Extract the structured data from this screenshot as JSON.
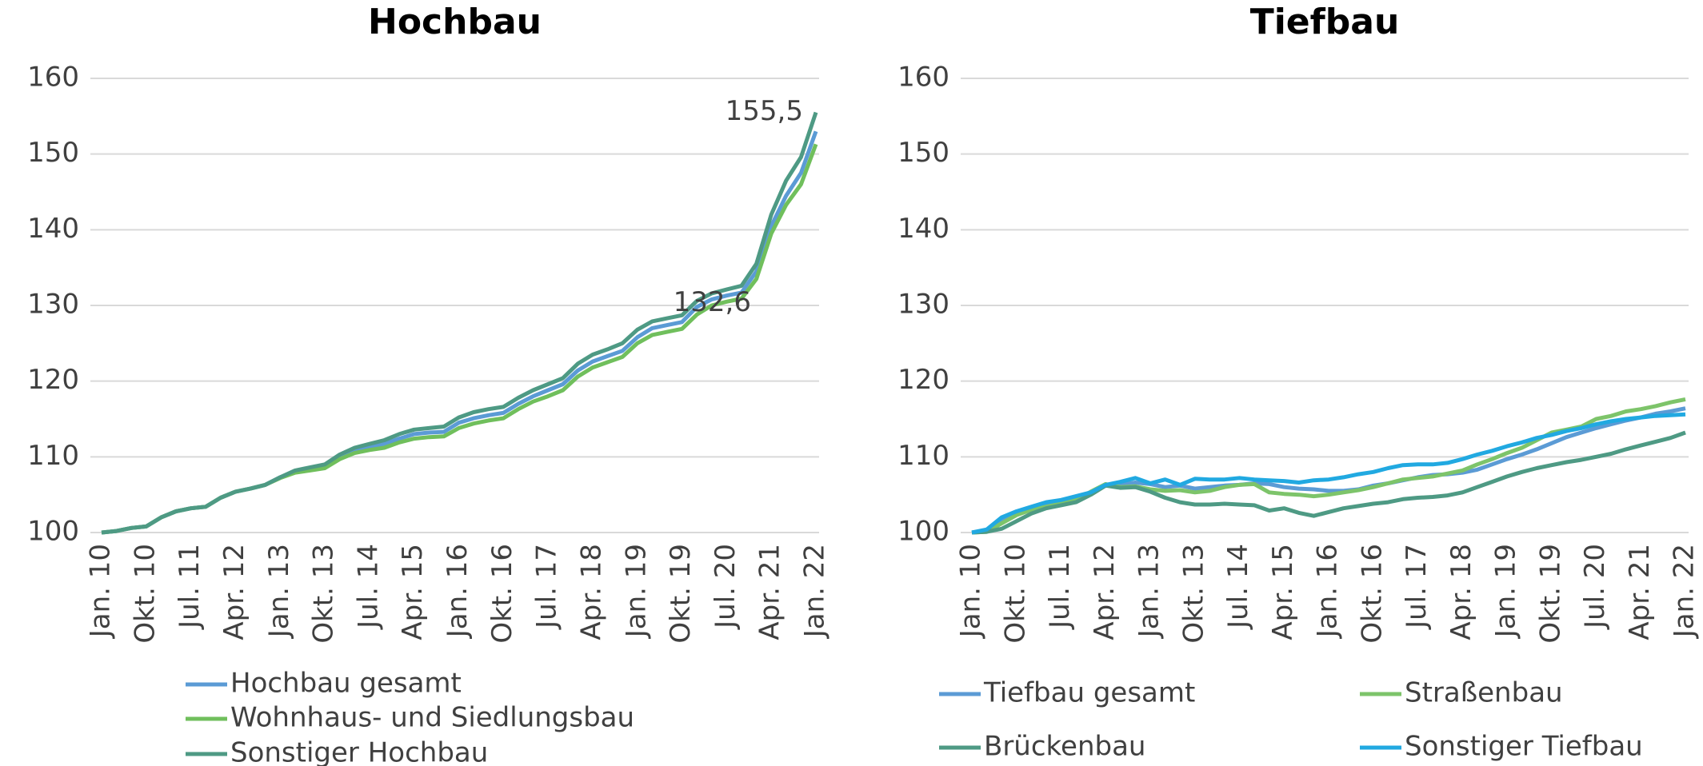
{
  "chart_data": [
    {
      "type": "line",
      "title": "Hochbau",
      "categories": [
        "Jan. 10",
        null,
        null,
        "Okt. 10",
        null,
        null,
        "Jul. 11",
        null,
        null,
        "Apr. 12",
        null,
        null,
        "Jan. 13",
        null,
        null,
        "Okt. 13",
        null,
        null,
        "Jul. 14",
        null,
        null,
        "Apr. 15",
        null,
        null,
        "Jan. 16",
        null,
        null,
        "Okt. 16",
        null,
        null,
        "Jul. 17",
        null,
        null,
        "Apr. 18",
        null,
        null,
        "Jan. 19",
        null,
        null,
        "Okt. 19",
        null,
        null,
        "Jul. 20",
        null,
        null,
        "Apr. 21",
        null,
        null,
        "Jan. 22"
      ],
      "ylim": [
        100,
        160
      ],
      "yticks": [
        100,
        110,
        120,
        130,
        140,
        150,
        160
      ],
      "grid": true,
      "legend": "bottom",
      "series": [
        {
          "name": "Hochbau gesamt",
          "color": "#5b9bd5",
          "values": [
            100,
            100.2,
            100.6,
            100.8,
            102,
            102.8,
            103.2,
            103.4,
            104.6,
            105.4,
            105.8,
            106.3,
            107.3,
            108,
            108.4,
            108.8,
            110,
            110.8,
            111.3,
            111.7,
            112.4,
            113,
            113.2,
            113.3,
            114.5,
            115.1,
            115.5,
            115.8,
            117,
            118,
            118.8,
            119.6,
            121.4,
            122.6,
            123.3,
            124,
            125.8,
            127,
            127.4,
            127.8,
            129.8,
            130.8,
            131.3,
            131.7,
            134.5,
            140.5,
            144.5,
            147.5,
            153
          ]
        },
        {
          "name": "Wohnhaus- und Siedlungsbau",
          "color": "#70bf5c",
          "values": [
            100,
            100.2,
            100.6,
            100.8,
            102,
            102.8,
            103.2,
            103.4,
            104.6,
            105.4,
            105.8,
            106.3,
            107.2,
            107.9,
            108.2,
            108.5,
            109.7,
            110.5,
            110.9,
            111.2,
            111.9,
            112.4,
            112.6,
            112.7,
            113.8,
            114.4,
            114.8,
            115.1,
            116.3,
            117.3,
            118,
            118.8,
            120.6,
            121.8,
            122.5,
            123.2,
            125,
            126.1,
            126.5,
            126.9,
            128.8,
            130,
            130.5,
            130.9,
            133.5,
            139.5,
            143.3,
            146,
            151.3
          ]
        },
        {
          "name": "Sonstiger Hochbau",
          "color": "#4e9a84",
          "values": [
            100,
            100.2,
            100.6,
            100.8,
            102,
            102.8,
            103.2,
            103.4,
            104.6,
            105.4,
            105.8,
            106.3,
            107.3,
            108.2,
            108.6,
            109,
            110.3,
            111.2,
            111.7,
            112.2,
            113,
            113.6,
            113.8,
            114,
            115.2,
            115.9,
            116.3,
            116.6,
            117.8,
            118.8,
            119.6,
            120.4,
            122.3,
            123.5,
            124.2,
            125,
            126.8,
            127.9,
            128.3,
            128.7,
            130.6,
            131.6,
            132.1,
            132.6,
            135.5,
            142,
            146.5,
            149.6,
            155.5
          ],
          "value_labels": [
            null,
            null,
            null,
            null,
            null,
            null,
            null,
            null,
            null,
            null,
            null,
            null,
            null,
            null,
            null,
            null,
            null,
            null,
            null,
            null,
            null,
            null,
            null,
            null,
            null,
            null,
            null,
            null,
            null,
            null,
            null,
            null,
            null,
            null,
            null,
            null,
            null,
            null,
            null,
            null,
            null,
            null,
            null,
            "132,6",
            null,
            null,
            null,
            null,
            "155,5"
          ]
        }
      ]
    },
    {
      "type": "line",
      "title": "Tiefbau",
      "categories": [
        "Jan. 10",
        null,
        null,
        "Okt. 10",
        null,
        null,
        "Jul. 11",
        null,
        null,
        "Apr. 12",
        null,
        null,
        "Jan. 13",
        null,
        null,
        "Okt. 13",
        null,
        null,
        "Jul. 14",
        null,
        null,
        "Apr. 15",
        null,
        null,
        "Jan. 16",
        null,
        null,
        "Okt. 16",
        null,
        null,
        "Jul. 17",
        null,
        null,
        "Apr. 18",
        null,
        null,
        "Jan. 19",
        null,
        null,
        "Okt. 19",
        null,
        null,
        "Jul. 20",
        null,
        null,
        "Apr. 21",
        null,
        null,
        "Jan. 22"
      ],
      "ylim": [
        100,
        160
      ],
      "yticks": [
        100,
        110,
        120,
        130,
        140,
        150,
        160
      ],
      "grid": true,
      "legend": "bottom",
      "series": [
        {
          "name": "Tiefbau gesamt",
          "color": "#5b9bd5",
          "values": [
            100,
            100.3,
            101.5,
            102.5,
            103,
            103.5,
            104,
            104.3,
            105.3,
            106.2,
            106.3,
            106.6,
            106.4,
            106,
            106.2,
            105.8,
            106,
            106.2,
            106.3,
            106.5,
            106.4,
            106,
            105.8,
            105.7,
            105.5,
            105.5,
            105.7,
            106.2,
            106.5,
            106.9,
            107.3,
            107.6,
            107.7,
            107.9,
            108.3,
            109,
            109.7,
            110.3,
            111,
            111.8,
            112.6,
            113.2,
            113.8,
            114.3,
            114.8,
            115.2,
            115.7,
            116,
            116.4
          ]
        },
        {
          "name": "Straßenbau",
          "color": "#7dc46a",
          "values": [
            100,
            100.1,
            101.2,
            102.3,
            103,
            103.4,
            103.8,
            104.3,
            105.4,
            106.4,
            106,
            106.1,
            105.7,
            105.5,
            105.6,
            105.3,
            105.5,
            106,
            106.3,
            106.4,
            105.3,
            105.1,
            105,
            104.8,
            105,
            105.3,
            105.6,
            106,
            106.5,
            107,
            107.2,
            107.4,
            107.8,
            108.2,
            109,
            109.7,
            110.5,
            111.2,
            112.2,
            113.2,
            113.6,
            114,
            115,
            115.4,
            116,
            116.3,
            116.7,
            117.2,
            117.6
          ]
        },
        {
          "name": "Brückenbau",
          "color": "#4e9a84",
          "values": [
            100,
            100.1,
            100.5,
            101.5,
            102.5,
            103.2,
            103.6,
            104,
            105,
            106.2,
            105.9,
            106,
            105.4,
            104.6,
            104,
            103.7,
            103.7,
            103.8,
            103.7,
            103.6,
            102.9,
            103.2,
            102.6,
            102.2,
            102.7,
            103.2,
            103.5,
            103.8,
            104,
            104.4,
            104.6,
            104.7,
            104.9,
            105.3,
            106,
            106.7,
            107.4,
            108,
            108.5,
            108.9,
            109.3,
            109.6,
            110,
            110.4,
            111,
            111.5,
            112,
            112.5,
            113.2
          ]
        },
        {
          "name": "Sonstiger Tiefbau",
          "color": "#21a9e1",
          "values": [
            100,
            100.4,
            102,
            102.8,
            103.4,
            104,
            104.3,
            104.8,
            105.3,
            106.3,
            106.7,
            107.2,
            106.5,
            107,
            106.3,
            107.1,
            107,
            107,
            107.2,
            107,
            106.9,
            106.8,
            106.6,
            106.9,
            107,
            107.3,
            107.7,
            108,
            108.5,
            108.9,
            109,
            109,
            109.2,
            109.7,
            110.3,
            110.8,
            111.4,
            111.9,
            112.5,
            112.9,
            113.4,
            113.8,
            114.3,
            114.7,
            115,
            115.2,
            115.4,
            115.5,
            115.6
          ]
        }
      ]
    }
  ]
}
